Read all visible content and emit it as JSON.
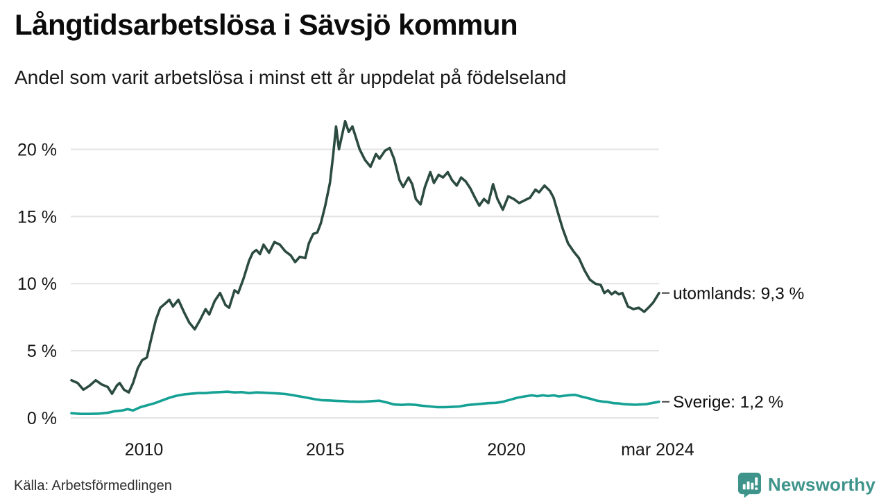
{
  "header": {
    "title": "Långtidsarbetslösa i Sävsjö kommun",
    "subtitle": "Andel som varit arbetslösa i minst ett år uppdelat på födelseland"
  },
  "footer": {
    "source": "Källa: Arbetsförmedlingen",
    "brand": "Newsworthy"
  },
  "colors": {
    "utomlands_line": "#2c4b40",
    "sverige_line": "#16a195",
    "grid": "#e3e3e3",
    "brand_teal": "#3e948b",
    "end_dash": "#444444"
  },
  "chart_data": {
    "type": "line",
    "title": "Långtidsarbetslösa i Sävsjö kommun",
    "subtitle": "Andel som varit arbetslösa i minst ett år uppdelat på födelseland",
    "grid": true,
    "legend_position": "right-of-line-end",
    "x_axis": {
      "range": [
        2008.0,
        2024.21
      ],
      "ticks": [
        2010,
        2015,
        2020,
        2024.17
      ],
      "tick_labels": [
        "2010",
        "2015",
        "2020",
        "mar 2024"
      ]
    },
    "y_axis": {
      "range": [
        0,
        22.5
      ],
      "ticks": [
        0,
        5,
        10,
        15,
        20
      ],
      "tick_labels": [
        "0 %",
        "5 %",
        "10 %",
        "15 %",
        "20 %"
      ]
    },
    "series": [
      {
        "name": "utomlands",
        "label": "utomlands: 9,3 %",
        "last_value_text": "9,3 %",
        "color": "#2c4b40",
        "points": [
          [
            2008.0,
            2.8
          ],
          [
            2008.17,
            2.6
          ],
          [
            2008.33,
            2.1
          ],
          [
            2008.5,
            2.4
          ],
          [
            2008.67,
            2.8
          ],
          [
            2008.83,
            2.5
          ],
          [
            2009.0,
            2.3
          ],
          [
            2009.12,
            1.8
          ],
          [
            2009.25,
            2.4
          ],
          [
            2009.33,
            2.6
          ],
          [
            2009.45,
            2.1
          ],
          [
            2009.58,
            1.9
          ],
          [
            2009.7,
            2.6
          ],
          [
            2009.83,
            3.7
          ],
          [
            2009.95,
            4.3
          ],
          [
            2010.08,
            4.5
          ],
          [
            2010.2,
            5.9
          ],
          [
            2010.33,
            7.3
          ],
          [
            2010.45,
            8.2
          ],
          [
            2010.58,
            8.5
          ],
          [
            2010.7,
            8.8
          ],
          [
            2010.8,
            8.3
          ],
          [
            2010.95,
            8.8
          ],
          [
            2011.1,
            7.9
          ],
          [
            2011.25,
            7.1
          ],
          [
            2011.4,
            6.6
          ],
          [
            2011.55,
            7.3
          ],
          [
            2011.7,
            8.1
          ],
          [
            2011.8,
            7.7
          ],
          [
            2011.95,
            8.7
          ],
          [
            2012.1,
            9.3
          ],
          [
            2012.25,
            8.4
          ],
          [
            2012.35,
            8.2
          ],
          [
            2012.5,
            9.5
          ],
          [
            2012.6,
            9.3
          ],
          [
            2012.75,
            10.4
          ],
          [
            2012.9,
            11.7
          ],
          [
            2013.0,
            12.3
          ],
          [
            2013.1,
            12.5
          ],
          [
            2013.2,
            12.2
          ],
          [
            2013.3,
            12.9
          ],
          [
            2013.45,
            12.3
          ],
          [
            2013.6,
            13.1
          ],
          [
            2013.75,
            12.9
          ],
          [
            2013.9,
            12.4
          ],
          [
            2014.05,
            12.1
          ],
          [
            2014.17,
            11.6
          ],
          [
            2014.3,
            12.0
          ],
          [
            2014.45,
            11.9
          ],
          [
            2014.55,
            13.0
          ],
          [
            2014.67,
            13.7
          ],
          [
            2014.78,
            13.8
          ],
          [
            2014.88,
            14.5
          ],
          [
            2015.0,
            15.8
          ],
          [
            2015.13,
            17.5
          ],
          [
            2015.22,
            19.6
          ],
          [
            2015.3,
            21.7
          ],
          [
            2015.38,
            20.0
          ],
          [
            2015.55,
            22.1
          ],
          [
            2015.65,
            21.3
          ],
          [
            2015.75,
            21.7
          ],
          [
            2015.95,
            20.0
          ],
          [
            2016.1,
            19.2
          ],
          [
            2016.25,
            18.7
          ],
          [
            2016.4,
            19.65
          ],
          [
            2016.5,
            19.3
          ],
          [
            2016.65,
            19.9
          ],
          [
            2016.78,
            20.1
          ],
          [
            2016.9,
            19.3
          ],
          [
            2017.05,
            17.7
          ],
          [
            2017.15,
            17.2
          ],
          [
            2017.3,
            17.9
          ],
          [
            2017.4,
            17.4
          ],
          [
            2017.5,
            16.3
          ],
          [
            2017.63,
            15.9
          ],
          [
            2017.75,
            17.2
          ],
          [
            2017.9,
            18.3
          ],
          [
            2018.0,
            17.5
          ],
          [
            2018.13,
            18.1
          ],
          [
            2018.25,
            17.9
          ],
          [
            2018.38,
            18.3
          ],
          [
            2018.5,
            17.7
          ],
          [
            2018.63,
            17.3
          ],
          [
            2018.75,
            17.9
          ],
          [
            2018.88,
            17.6
          ],
          [
            2019.0,
            17.1
          ],
          [
            2019.13,
            16.4
          ],
          [
            2019.25,
            15.8
          ],
          [
            2019.38,
            16.3
          ],
          [
            2019.5,
            16.0
          ],
          [
            2019.63,
            17.4
          ],
          [
            2019.75,
            16.3
          ],
          [
            2019.9,
            15.5
          ],
          [
            2020.05,
            16.5
          ],
          [
            2020.2,
            16.3
          ],
          [
            2020.35,
            16.0
          ],
          [
            2020.5,
            16.2
          ],
          [
            2020.65,
            16.4
          ],
          [
            2020.8,
            17.0
          ],
          [
            2020.9,
            16.8
          ],
          [
            2021.05,
            17.3
          ],
          [
            2021.2,
            16.9
          ],
          [
            2021.3,
            16.4
          ],
          [
            2021.45,
            15.0
          ],
          [
            2021.55,
            14.1
          ],
          [
            2021.7,
            13.0
          ],
          [
            2021.85,
            12.4
          ],
          [
            2022.0,
            11.9
          ],
          [
            2022.15,
            11.0
          ],
          [
            2022.3,
            10.3
          ],
          [
            2022.45,
            10.0
          ],
          [
            2022.6,
            9.9
          ],
          [
            2022.7,
            9.3
          ],
          [
            2022.8,
            9.5
          ],
          [
            2022.9,
            9.2
          ],
          [
            2023.0,
            9.4
          ],
          [
            2023.1,
            9.2
          ],
          [
            2023.2,
            9.3
          ],
          [
            2023.35,
            8.3
          ],
          [
            2023.5,
            8.1
          ],
          [
            2023.65,
            8.2
          ],
          [
            2023.8,
            7.9
          ],
          [
            2023.95,
            8.3
          ],
          [
            2024.05,
            8.6
          ],
          [
            2024.21,
            9.3
          ]
        ]
      },
      {
        "name": "Sverige",
        "label": "Sverige: 1,2 %",
        "last_value_text": "1,2 %",
        "color": "#16a195",
        "points": [
          [
            2008.0,
            0.35
          ],
          [
            2008.25,
            0.3
          ],
          [
            2008.5,
            0.3
          ],
          [
            2008.75,
            0.32
          ],
          [
            2009.0,
            0.38
          ],
          [
            2009.2,
            0.5
          ],
          [
            2009.4,
            0.55
          ],
          [
            2009.55,
            0.65
          ],
          [
            2009.7,
            0.55
          ],
          [
            2009.9,
            0.8
          ],
          [
            2010.1,
            0.95
          ],
          [
            2010.3,
            1.1
          ],
          [
            2010.5,
            1.3
          ],
          [
            2010.7,
            1.5
          ],
          [
            2010.9,
            1.65
          ],
          [
            2011.1,
            1.75
          ],
          [
            2011.3,
            1.8
          ],
          [
            2011.5,
            1.85
          ],
          [
            2011.7,
            1.85
          ],
          [
            2011.9,
            1.9
          ],
          [
            2012.1,
            1.92
          ],
          [
            2012.3,
            1.95
          ],
          [
            2012.5,
            1.9
          ],
          [
            2012.7,
            1.92
          ],
          [
            2012.9,
            1.85
          ],
          [
            2013.1,
            1.9
          ],
          [
            2013.3,
            1.88
          ],
          [
            2013.5,
            1.85
          ],
          [
            2013.7,
            1.82
          ],
          [
            2013.9,
            1.78
          ],
          [
            2014.1,
            1.7
          ],
          [
            2014.3,
            1.6
          ],
          [
            2014.5,
            1.5
          ],
          [
            2014.7,
            1.4
          ],
          [
            2014.9,
            1.32
          ],
          [
            2015.1,
            1.3
          ],
          [
            2015.3,
            1.27
          ],
          [
            2015.5,
            1.25
          ],
          [
            2015.7,
            1.22
          ],
          [
            2015.9,
            1.2
          ],
          [
            2016.1,
            1.22
          ],
          [
            2016.3,
            1.25
          ],
          [
            2016.5,
            1.28
          ],
          [
            2016.7,
            1.15
          ],
          [
            2016.9,
            1.0
          ],
          [
            2017.1,
            0.97
          ],
          [
            2017.3,
            1.0
          ],
          [
            2017.5,
            0.97
          ],
          [
            2017.7,
            0.9
          ],
          [
            2017.9,
            0.85
          ],
          [
            2018.1,
            0.8
          ],
          [
            2018.3,
            0.8
          ],
          [
            2018.5,
            0.82
          ],
          [
            2018.7,
            0.85
          ],
          [
            2018.9,
            0.95
          ],
          [
            2019.1,
            1.0
          ],
          [
            2019.3,
            1.05
          ],
          [
            2019.5,
            1.1
          ],
          [
            2019.7,
            1.12
          ],
          [
            2019.9,
            1.2
          ],
          [
            2020.1,
            1.35
          ],
          [
            2020.3,
            1.5
          ],
          [
            2020.5,
            1.6
          ],
          [
            2020.7,
            1.68
          ],
          [
            2020.85,
            1.62
          ],
          [
            2021.0,
            1.68
          ],
          [
            2021.15,
            1.63
          ],
          [
            2021.3,
            1.68
          ],
          [
            2021.45,
            1.6
          ],
          [
            2021.6,
            1.65
          ],
          [
            2021.75,
            1.7
          ],
          [
            2021.9,
            1.72
          ],
          [
            2022.05,
            1.6
          ],
          [
            2022.2,
            1.5
          ],
          [
            2022.35,
            1.4
          ],
          [
            2022.5,
            1.28
          ],
          [
            2022.65,
            1.22
          ],
          [
            2022.8,
            1.18
          ],
          [
            2022.95,
            1.1
          ],
          [
            2023.1,
            1.08
          ],
          [
            2023.25,
            1.02
          ],
          [
            2023.4,
            1.0
          ],
          [
            2023.55,
            0.98
          ],
          [
            2023.7,
            1.0
          ],
          [
            2023.85,
            1.02
          ],
          [
            2024.0,
            1.1
          ],
          [
            2024.21,
            1.2
          ]
        ]
      }
    ]
  }
}
